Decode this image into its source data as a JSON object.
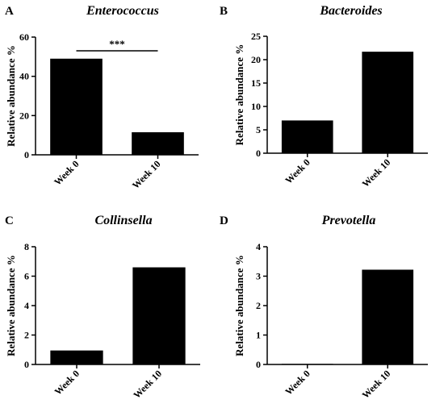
{
  "chart_data": [
    {
      "type": "bar",
      "panel": "A",
      "title": "Enterococcus",
      "ylabel": "Relative abundance %",
      "categories": [
        "Week 0",
        "Week 10"
      ],
      "values": [
        49,
        11.5
      ],
      "ylim": [
        0,
        60
      ],
      "yticks": [
        "0",
        "20",
        "40",
        "60"
      ],
      "significance": "***",
      "grid": false
    },
    {
      "type": "bar",
      "panel": "B",
      "title": "Bacteroides",
      "ylabel": "Relative abundance %",
      "categories": [
        "Week 0",
        "Week 10"
      ],
      "values": [
        7,
        21.7
      ],
      "ylim": [
        0,
        25
      ],
      "yticks": [
        "0",
        "5",
        "10",
        "15",
        "20",
        "25"
      ],
      "grid": false
    },
    {
      "type": "bar",
      "panel": "C",
      "title": "Collinsella",
      "ylabel": "Relative abundance %",
      "categories": [
        "Week 0",
        "Week 10"
      ],
      "values": [
        0.95,
        6.6
      ],
      "ylim": [
        0,
        8
      ],
      "yticks": [
        "0",
        "2",
        "4",
        "6",
        "8"
      ],
      "grid": false
    },
    {
      "type": "bar",
      "panel": "D",
      "title": "Prevotella",
      "ylabel": "Relative abundance %",
      "categories": [
        "Week 0",
        "Week 10"
      ],
      "values": [
        0.02,
        3.22
      ],
      "ylim": [
        0,
        4
      ],
      "yticks": [
        "0",
        "1",
        "2",
        "3",
        "4"
      ],
      "grid": false
    }
  ],
  "colors": {
    "bar": "#000000",
    "axis": "#000000"
  }
}
